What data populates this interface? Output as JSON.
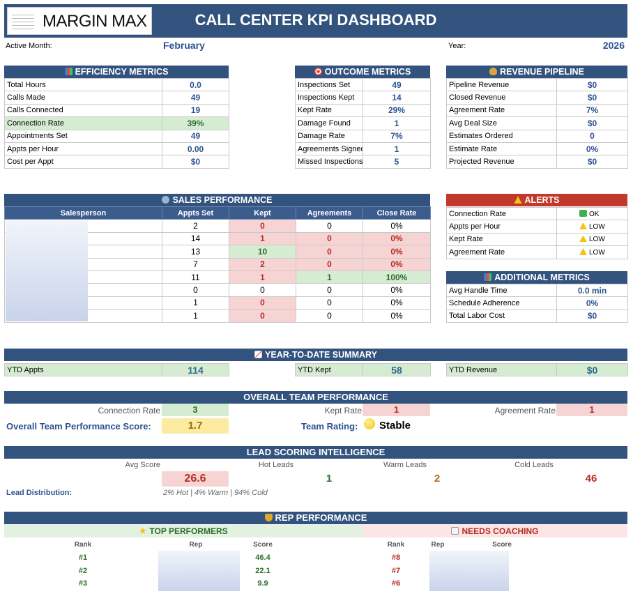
{
  "header": {
    "logo_text": "MARGIN MAX",
    "title": "CALL CENTER KPI DASHBOARD"
  },
  "meta": {
    "active_month_label": "Active Month:",
    "active_month": "February",
    "year_label": "Year:",
    "year": "2026"
  },
  "efficiency": {
    "title": "EFFICIENCY METRICS",
    "rows": [
      {
        "label": "Total Hours",
        "value": "0.0"
      },
      {
        "label": "Calls Made",
        "value": "49"
      },
      {
        "label": "Calls Connected",
        "value": "19"
      },
      {
        "label": "Connection Rate",
        "value": "39%"
      },
      {
        "label": "Appointments Set",
        "value": "49"
      },
      {
        "label": "Appts per Hour",
        "value": "0.00"
      },
      {
        "label": "Cost per Appt",
        "value": "$0"
      }
    ]
  },
  "outcome": {
    "title": "OUTCOME METRICS",
    "rows": [
      {
        "label": "Inspections Set",
        "value": "49"
      },
      {
        "label": "Inspections Kept",
        "value": "14"
      },
      {
        "label": "Kept Rate",
        "value": "29%"
      },
      {
        "label": "Damage Found",
        "value": "1"
      },
      {
        "label": "Damage Rate",
        "value": "7%"
      },
      {
        "label": "Agreements Signed",
        "value": "1"
      },
      {
        "label": "Missed Inspections",
        "value": "5"
      }
    ]
  },
  "revenue": {
    "title": "REVENUE PIPELINE",
    "rows": [
      {
        "label": "Pipeline Revenue",
        "value": "$0"
      },
      {
        "label": "Closed Revenue",
        "value": "$0"
      },
      {
        "label": "Agreement Rate",
        "value": "7%"
      },
      {
        "label": "Avg Deal Size",
        "value": "$0"
      },
      {
        "label": "Estimates Ordered",
        "value": "0"
      },
      {
        "label": "Estimate Rate",
        "value": "0%"
      },
      {
        "label": "Projected Revenue",
        "value": "$0"
      }
    ]
  },
  "sales": {
    "title": "SALES PERFORMANCE",
    "columns": [
      "Salesperson",
      "Appts Set",
      "Kept",
      "Agreements",
      "Close Rate"
    ],
    "rows": [
      {
        "appts": "2",
        "kept": "0",
        "agreements": "0",
        "close": "0%"
      },
      {
        "appts": "14",
        "kept": "1",
        "agreements": "0",
        "close": "0%"
      },
      {
        "appts": "13",
        "kept": "10",
        "agreements": "0",
        "close": "0%"
      },
      {
        "appts": "7",
        "kept": "2",
        "agreements": "0",
        "close": "0%"
      },
      {
        "appts": "11",
        "kept": "1",
        "agreements": "1",
        "close": "100%"
      },
      {
        "appts": "0",
        "kept": "0",
        "agreements": "0",
        "close": "0%"
      },
      {
        "appts": "1",
        "kept": "0",
        "agreements": "0",
        "close": "0%"
      },
      {
        "appts": "1",
        "kept": "0",
        "agreements": "0",
        "close": "0%"
      }
    ]
  },
  "alerts": {
    "title": "ALERTS",
    "rows": [
      {
        "label": "Connection Rate",
        "status": "OK"
      },
      {
        "label": "Appts per Hour",
        "status": "LOW"
      },
      {
        "label": "Kept Rate",
        "status": "LOW"
      },
      {
        "label": "Agreement Rate",
        "status": "LOW"
      }
    ]
  },
  "additional": {
    "title": "ADDITIONAL METRICS",
    "rows": [
      {
        "label": "Avg Handle Time",
        "value": "0.0  min"
      },
      {
        "label": "Schedule Adherence",
        "value": "0%"
      },
      {
        "label": "Total Labor Cost",
        "value": "$0"
      }
    ]
  },
  "ytd": {
    "title": "YEAR-TO-DATE SUMMARY",
    "appts_label": "YTD Appts",
    "appts": "114",
    "kept_label": "YTD Kept",
    "kept": "58",
    "revenue_label": "YTD Revenue",
    "revenue": "$0"
  },
  "team": {
    "title": "OVERALL TEAM PERFORMANCE",
    "connection_label": "Connection Rate",
    "connection": "3",
    "kept_label": "Kept Rate",
    "kept": "1",
    "agreement_label": "Agreement Rate",
    "agreement": "1",
    "score_label": "Overall Team Performance Score:",
    "score": "1.7",
    "rating_label": "Team Rating:",
    "rating": "Stable"
  },
  "lead": {
    "title": "LEAD SCORING INTELLIGENCE",
    "avg_label": "Avg Score",
    "avg": "26.6",
    "hot_label": "Hot Leads",
    "hot": "1",
    "warm_label": "Warm Leads",
    "warm": "2",
    "cold_label": "Cold Leads",
    "cold": "46",
    "dist_label": "Lead Distribution:",
    "dist": "2% Hot | 4% Warm | 94% Cold"
  },
  "rep": {
    "title": "REP PERFORMANCE",
    "top_title": "TOP PERFORMERS",
    "coach_title": "NEEDS COACHING",
    "rank_label": "Rank",
    "rep_label": "Rep",
    "score_label": "Score",
    "top": [
      {
        "rank": "#1",
        "score": "46.4"
      },
      {
        "rank": "#2",
        "score": "22.1"
      },
      {
        "rank": "#3",
        "score": "9.9"
      }
    ],
    "coach": [
      {
        "rank": "#8"
      },
      {
        "rank": "#7"
      },
      {
        "rank": "#6"
      }
    ]
  }
}
